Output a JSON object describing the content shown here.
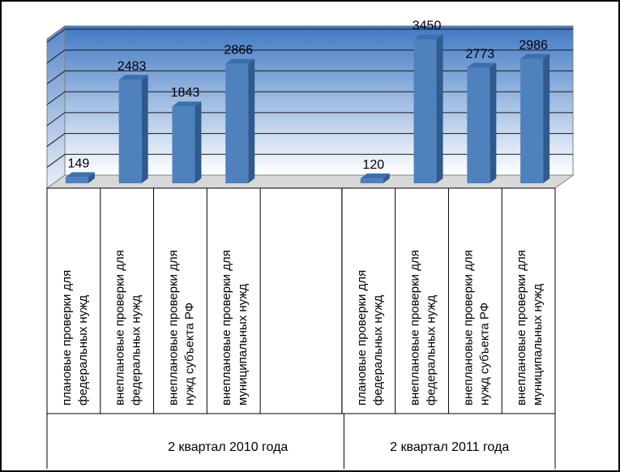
{
  "chart_data": {
    "type": "bar",
    "style": "3d-column",
    "colors": {
      "bar_front": "#4F81BD",
      "bar_side": "#2E5A8E",
      "bar_top": "#3D6FAE",
      "wall_top": "#4A7FC8",
      "wall_bottom": "#FFFFFF"
    },
    "ylim": [
      0,
      3500
    ],
    "grid": true,
    "groups": [
      {
        "label": "2 квартал 2010 года"
      },
      {
        "label": "2 квартал 2011 года"
      }
    ],
    "categories": [
      {
        "group": 0,
        "lines": [
          "плановые проверки для",
          "федеральных нужд"
        ],
        "value": 149,
        "label": "149"
      },
      {
        "group": 0,
        "lines": [
          "внеплановые проверки для",
          "федеральных нужд"
        ],
        "value": 2483,
        "label": "2483"
      },
      {
        "group": 0,
        "lines": [
          "внеплановые проверки для",
          "нужд субъекта РФ"
        ],
        "value": 1843,
        "label": "1843"
      },
      {
        "group": 0,
        "lines": [
          "внеплановые проверки для",
          "муниципальных нужд"
        ],
        "value": 2866,
        "label": "2866"
      },
      {
        "group": 0,
        "lines": [],
        "value": null,
        "label": ""
      },
      {
        "group": 1,
        "lines": [
          "плановые проверки для",
          "федеральных нужд"
        ],
        "value": 120,
        "label": "120"
      },
      {
        "group": 1,
        "lines": [
          "внеплановые проверки для",
          "федеральных нужд"
        ],
        "value": 3450,
        "label": "3450"
      },
      {
        "group": 1,
        "lines": [
          "внеплановые проверки для",
          "нужд субъекта РФ"
        ],
        "value": 2773,
        "label": "2773"
      },
      {
        "group": 1,
        "lines": [
          "внеплановые проверки для",
          "муниципальных нужд"
        ],
        "value": 2986,
        "label": "2986"
      }
    ]
  }
}
